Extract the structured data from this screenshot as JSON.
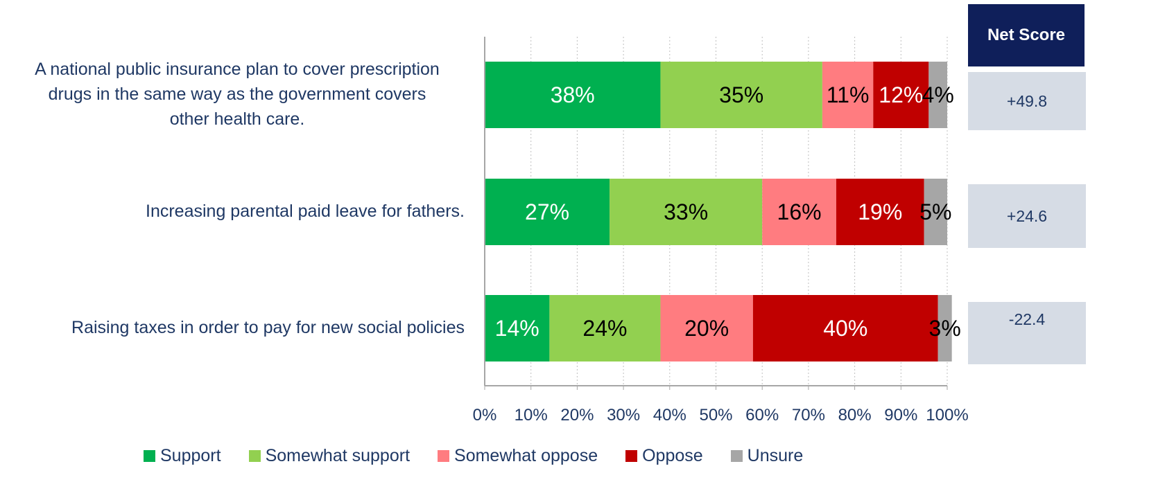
{
  "chart_data": {
    "type": "bar",
    "orientation": "horizontal",
    "stacked": true,
    "categories": [
      "A national public insurance plan to cover prescription drugs in the same way as the government covers other health care.",
      "Increasing parental paid leave for fathers.",
      "Raising taxes in order to pay for new social policies"
    ],
    "category_lines": [
      [
        "A national public insurance plan to cover prescription",
        "drugs in the same way as the government covers",
        "other health care."
      ],
      [
        "Increasing parental paid leave for fathers."
      ],
      [
        "Raising taxes in order to pay for new social policies"
      ]
    ],
    "series": [
      {
        "name": "Support",
        "color": "#00b050",
        "values": [
          38,
          27,
          14
        ],
        "labels": [
          "38%",
          "27%",
          "14%"
        ]
      },
      {
        "name": "Somewhat support",
        "color": "#92d050",
        "values": [
          35,
          33,
          24
        ],
        "labels": [
          "35%",
          "33%",
          "24%"
        ]
      },
      {
        "name": "Somewhat oppose",
        "color": "#ff7c80",
        "values": [
          11,
          16,
          20
        ],
        "labels": [
          "11%",
          "16%",
          "20%"
        ]
      },
      {
        "name": "Oppose",
        "color": "#c00000",
        "values": [
          12,
          19,
          40
        ],
        "labels": [
          "12%",
          "19%",
          "40%"
        ]
      },
      {
        "name": "Unsure",
        "color": "#a6a6a6",
        "values": [
          4,
          5,
          3
        ],
        "labels": [
          "4%",
          "5%",
          "3%"
        ]
      }
    ],
    "xlim": [
      0,
      100
    ],
    "x_ticks": [
      "0%",
      "10%",
      "20%",
      "30%",
      "40%",
      "50%",
      "60%",
      "70%",
      "80%",
      "90%",
      "100%"
    ],
    "grid": true,
    "legend_position": "bottom"
  },
  "net_score": {
    "header": "Net Score",
    "values": [
      "+49.8",
      "+24.6",
      "-22.4"
    ]
  }
}
